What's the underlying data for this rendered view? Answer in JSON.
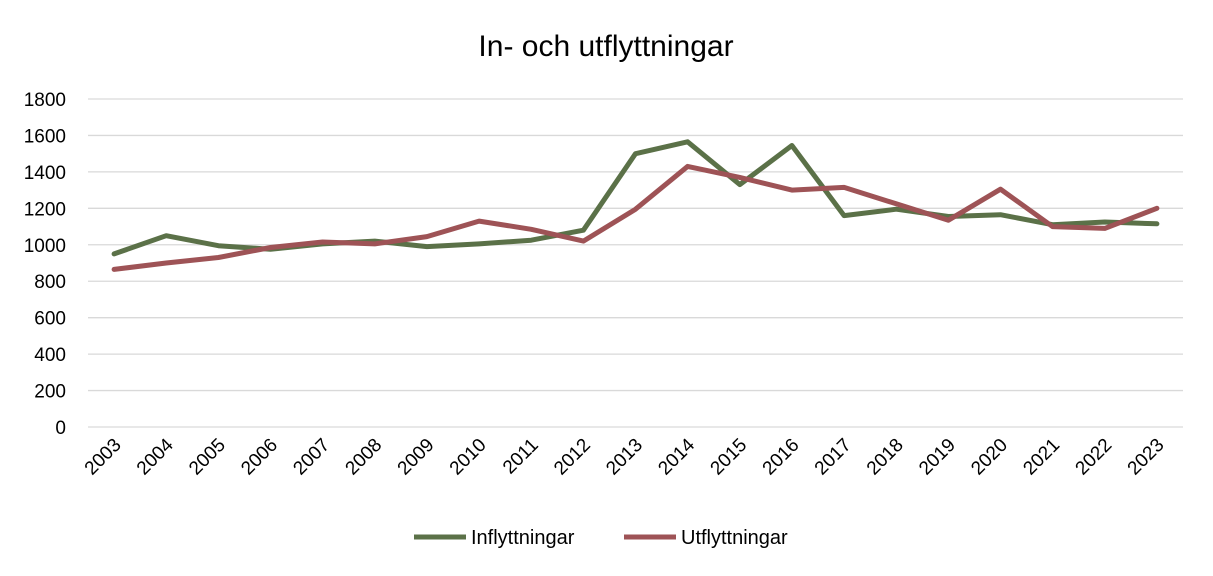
{
  "chart_data": {
    "type": "line",
    "title": "In- och utflyttningar",
    "xlabel": "",
    "ylabel": "",
    "categories": [
      "2003",
      "2004",
      "2005",
      "2006",
      "2007",
      "2008",
      "2009",
      "2010",
      "2011",
      "2012",
      "2013",
      "2014",
      "2015",
      "2016",
      "2017",
      "2018",
      "2019",
      "2020",
      "2021",
      "2022",
      "2023"
    ],
    "y_ticks": [
      0,
      200,
      400,
      600,
      800,
      1000,
      1200,
      1400,
      1600,
      1800
    ],
    "ylim": [
      0,
      1800
    ],
    "grid": true,
    "legend_position": "bottom",
    "series": [
      {
        "name": "Inflyttningar",
        "color": "#5b7148",
        "values": [
          950,
          1050,
          995,
          975,
          1005,
          1020,
          990,
          1005,
          1025,
          1080,
          1500,
          1565,
          1330,
          1545,
          1160,
          1195,
          1155,
          1165,
          1110,
          1125,
          1115
        ]
      },
      {
        "name": "Utflyttningar",
        "color": "#9e5356",
        "values": [
          865,
          900,
          930,
          985,
          1015,
          1005,
          1045,
          1130,
          1085,
          1020,
          1195,
          1430,
          1370,
          1300,
          1315,
          1225,
          1135,
          1305,
          1100,
          1090,
          1200
        ]
      }
    ]
  }
}
